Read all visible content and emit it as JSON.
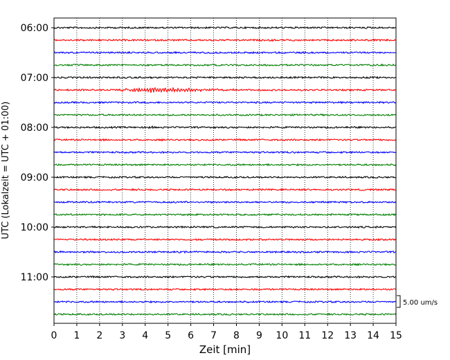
{
  "chart_data": {
    "type": "line",
    "title": "",
    "xlabel": "Zeit  [min]",
    "ylabel": "UTC (Lokalzeit = UTC + 01:00)",
    "xlim": [
      0,
      15
    ],
    "xticks": [
      "0",
      "1",
      "2",
      "3",
      "4",
      "5",
      "6",
      "7",
      "8",
      "9",
      "10",
      "11",
      "12",
      "13",
      "14",
      "15"
    ],
    "yticks": [
      "06:00",
      "07:00",
      "08:00",
      "09:00",
      "10:00",
      "11:00"
    ],
    "trace_count": 24,
    "trace_interval_minutes": 15,
    "trace_colors": [
      "#000000",
      "#ff0000",
      "#0000ff",
      "#008000"
    ],
    "x_grid": "dotted",
    "scale_bar_label": "5.00 um/s",
    "events": [
      {
        "trace": 5,
        "start_min": 3.0,
        "end_min": 8.0,
        "peak_min": 4.6,
        "relative_amplitude": 3.0
      },
      {
        "trace": 1,
        "start_min": 9.5,
        "end_min": 9.7,
        "peak_min": 9.6,
        "relative_amplitude": 2.0
      },
      {
        "trace": 8,
        "start_min": 4.1,
        "end_min": 4.4,
        "peak_min": 4.25,
        "relative_amplitude": 2.0
      }
    ]
  }
}
